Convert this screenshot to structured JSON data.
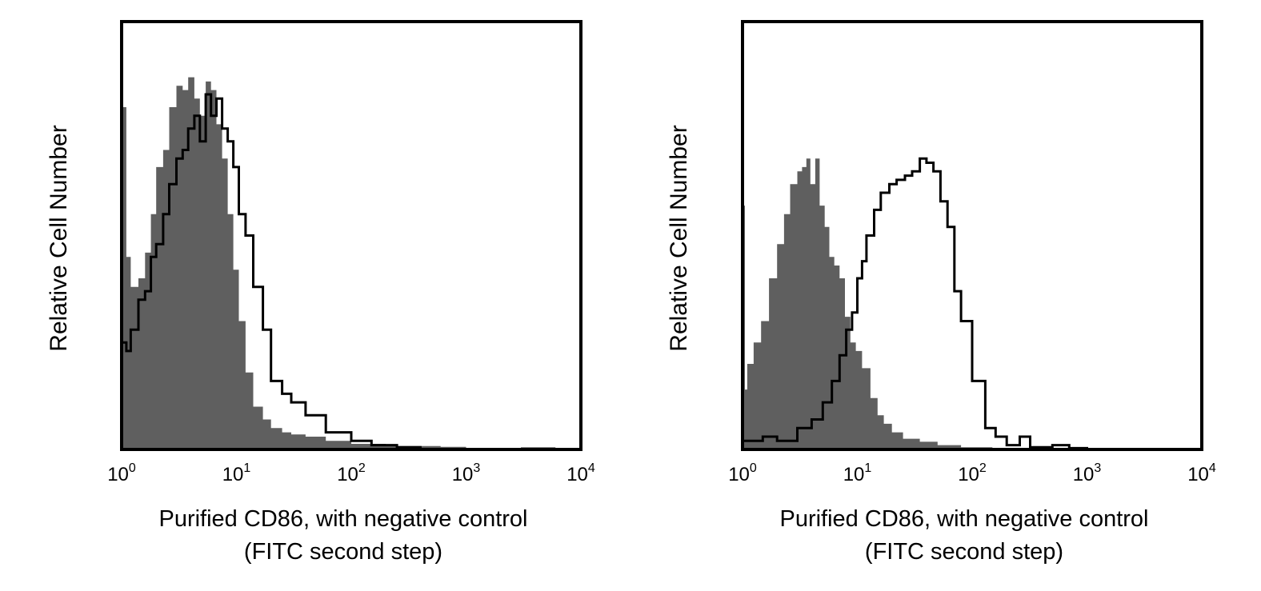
{
  "figure": {
    "panels_count": 2
  },
  "chart_data": [
    {
      "type": "area",
      "id": "panel-1",
      "xlabel": "Purified CD86, with negative control",
      "xlabel_sub": "(FITC second step)",
      "ylabel": "Relative Cell Number",
      "xscale": "log",
      "xlim": [
        1,
        10000
      ],
      "ylim": [
        0,
        100
      ],
      "grid": false,
      "legend": "none",
      "xticks": [
        {
          "base": "10",
          "exp": "0",
          "value": 1
        },
        {
          "base": "10",
          "exp": "1",
          "value": 10
        },
        {
          "base": "10",
          "exp": "2",
          "value": 100
        },
        {
          "base": "10",
          "exp": "3",
          "value": 1000
        },
        {
          "base": "10",
          "exp": "4",
          "value": 10000
        }
      ],
      "series": [
        {
          "style": "filled",
          "color": "#5f5f5f",
          "x": [
            1.0,
            1.1,
            1.2,
            1.4,
            1.6,
            1.8,
            2.0,
            2.3,
            2.6,
            3.0,
            3.4,
            3.8,
            4.3,
            4.8,
            5.4,
            6.0,
            6.7,
            7.5,
            8.4,
            9.4,
            10.5,
            12,
            14,
            17,
            20,
            25,
            30,
            40,
            60,
            100,
            200,
            600,
            1000,
            3000,
            6000,
            10000
          ],
          "values": [
            80,
            45,
            38,
            40,
            46,
            55,
            66,
            70,
            80,
            85,
            84,
            87,
            82,
            78,
            86,
            84,
            76,
            68,
            55,
            42,
            30,
            18,
            10,
            7,
            5,
            4,
            3.5,
            3,
            2,
            1.3,
            0.8,
            0.6,
            0.3,
            0.5,
            0.3,
            0
          ]
        },
        {
          "style": "line",
          "color": "#000000",
          "x": [
            1.0,
            1.1,
            1.2,
            1.4,
            1.6,
            1.8,
            2.0,
            2.3,
            2.6,
            3.0,
            3.4,
            3.8,
            4.3,
            4.8,
            5.4,
            6.0,
            6.7,
            7.5,
            8.4,
            9.4,
            10.5,
            12,
            14,
            17,
            20,
            25,
            30,
            40,
            60,
            100,
            150,
            250,
            400,
            10000
          ],
          "values": [
            25,
            23,
            28,
            35,
            37,
            45,
            48,
            55,
            62,
            68,
            70,
            75,
            78,
            72,
            83,
            78,
            82,
            75,
            72,
            66,
            55,
            50,
            38,
            28,
            16,
            13,
            11,
            8,
            4,
            2,
            1,
            0.5,
            0,
            0
          ]
        }
      ]
    },
    {
      "type": "area",
      "id": "panel-2",
      "xlabel": "Purified CD86, with negative control",
      "xlabel_sub": "(FITC second step)",
      "ylabel": "Relative Cell Number",
      "xscale": "log",
      "xlim": [
        1,
        10000
      ],
      "ylim": [
        0,
        100
      ],
      "grid": false,
      "legend": "none",
      "xticks": [
        {
          "base": "10",
          "exp": "0",
          "value": 1
        },
        {
          "base": "10",
          "exp": "1",
          "value": 10
        },
        {
          "base": "10",
          "exp": "2",
          "value": 100
        },
        {
          "base": "10",
          "exp": "3",
          "value": 1000
        },
        {
          "base": "10",
          "exp": "4",
          "value": 10000
        }
      ],
      "series": [
        {
          "style": "filled",
          "color": "#5f5f5f",
          "x": [
            1.0,
            1.05,
            1.1,
            1.25,
            1.45,
            1.7,
            2.0,
            2.3,
            2.6,
            3.0,
            3.3,
            3.6,
            3.9,
            4.3,
            4.7,
            5.2,
            5.7,
            6.3,
            7.0,
            7.8,
            8.7,
            9.7,
            11,
            13,
            15,
            17,
            20,
            25,
            35,
            50,
            80,
            150,
            300,
            10000
          ],
          "values": [
            57,
            14,
            20,
            25,
            30,
            40,
            48,
            55,
            62,
            65,
            66,
            68,
            62,
            68,
            57,
            52,
            45,
            43,
            40,
            31,
            25,
            23,
            19,
            12,
            8,
            6,
            4,
            2.5,
            1.8,
            1,
            0.5,
            0.2,
            0,
            0
          ]
        },
        {
          "style": "line",
          "color": "#000000",
          "x": [
            1.0,
            1.5,
            2.0,
            3.0,
            4.0,
            5.0,
            6.0,
            7.0,
            8.0,
            9.0,
            10,
            11,
            12,
            14,
            16,
            19,
            22,
            26,
            30,
            35,
            40,
            46,
            53,
            61,
            70,
            80,
            100,
            130,
            160,
            200,
            260,
            320,
            500,
            700,
            1000,
            10000
          ],
          "values": [
            2,
            3,
            2,
            5,
            7,
            11,
            16,
            22,
            28,
            32,
            40,
            44,
            50,
            56,
            60,
            62,
            63,
            64,
            65,
            68,
            67,
            65,
            58,
            52,
            37,
            30,
            16,
            5,
            3,
            1,
            3,
            0.5,
            1,
            0.3,
            0,
            0
          ]
        }
      ]
    }
  ]
}
